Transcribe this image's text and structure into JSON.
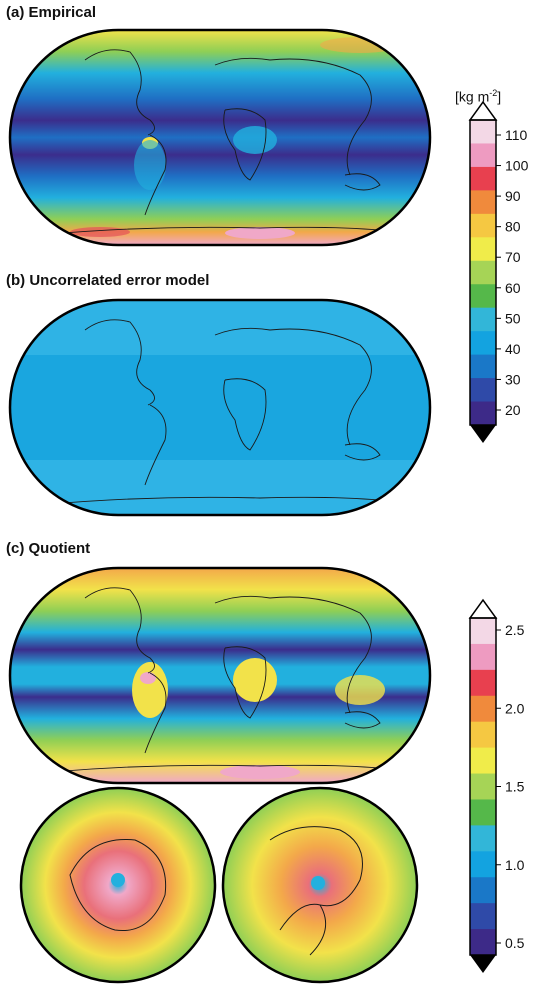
{
  "panels": {
    "a": {
      "title": "(a)  Empirical"
    },
    "b": {
      "title": "(b)  Uncorrelated error model"
    },
    "c": {
      "title": "(c)  Quotient"
    }
  },
  "colorbar_top": {
    "unit_prefix": "[kg m",
    "unit_exp": "-2",
    "unit_suffix": "]",
    "ticks": [
      "110",
      "100",
      "90",
      "80",
      "70",
      "60",
      "50",
      "40",
      "30",
      "20"
    ],
    "colors": [
      "#f3d8e6",
      "#ee9bc1",
      "#e8404f",
      "#f08a3c",
      "#f5c842",
      "#f0ec4a",
      "#a6d456",
      "#55b84a",
      "#32b6d8",
      "#13a3e0",
      "#1a78c8",
      "#2f4aa8",
      "#3d2a88"
    ]
  },
  "colorbar_bottom": {
    "ticks": [
      "2.5",
      "2.0",
      "1.5",
      "1.0",
      "0.5"
    ],
    "colors": [
      "#f3d8e6",
      "#ee9bc1",
      "#e8404f",
      "#f08a3c",
      "#f5c842",
      "#f0ec4a",
      "#a6d456",
      "#55b84a",
      "#32b6d8",
      "#13a3e0",
      "#1a78c8",
      "#2f4aa8",
      "#3d2a88"
    ]
  },
  "colors": {
    "map_uniform": "#1aa6df",
    "map_uniform_light": "#2fb3e5",
    "band_purple": "#3b2d8c",
    "band_blue": "#1f6fc4",
    "cyan": "#22b0de",
    "yellow": "#f2e24a",
    "green": "#8fcf55",
    "pink": "#f0a8c8",
    "red": "#e4505a",
    "orange": "#f3a84a"
  }
}
